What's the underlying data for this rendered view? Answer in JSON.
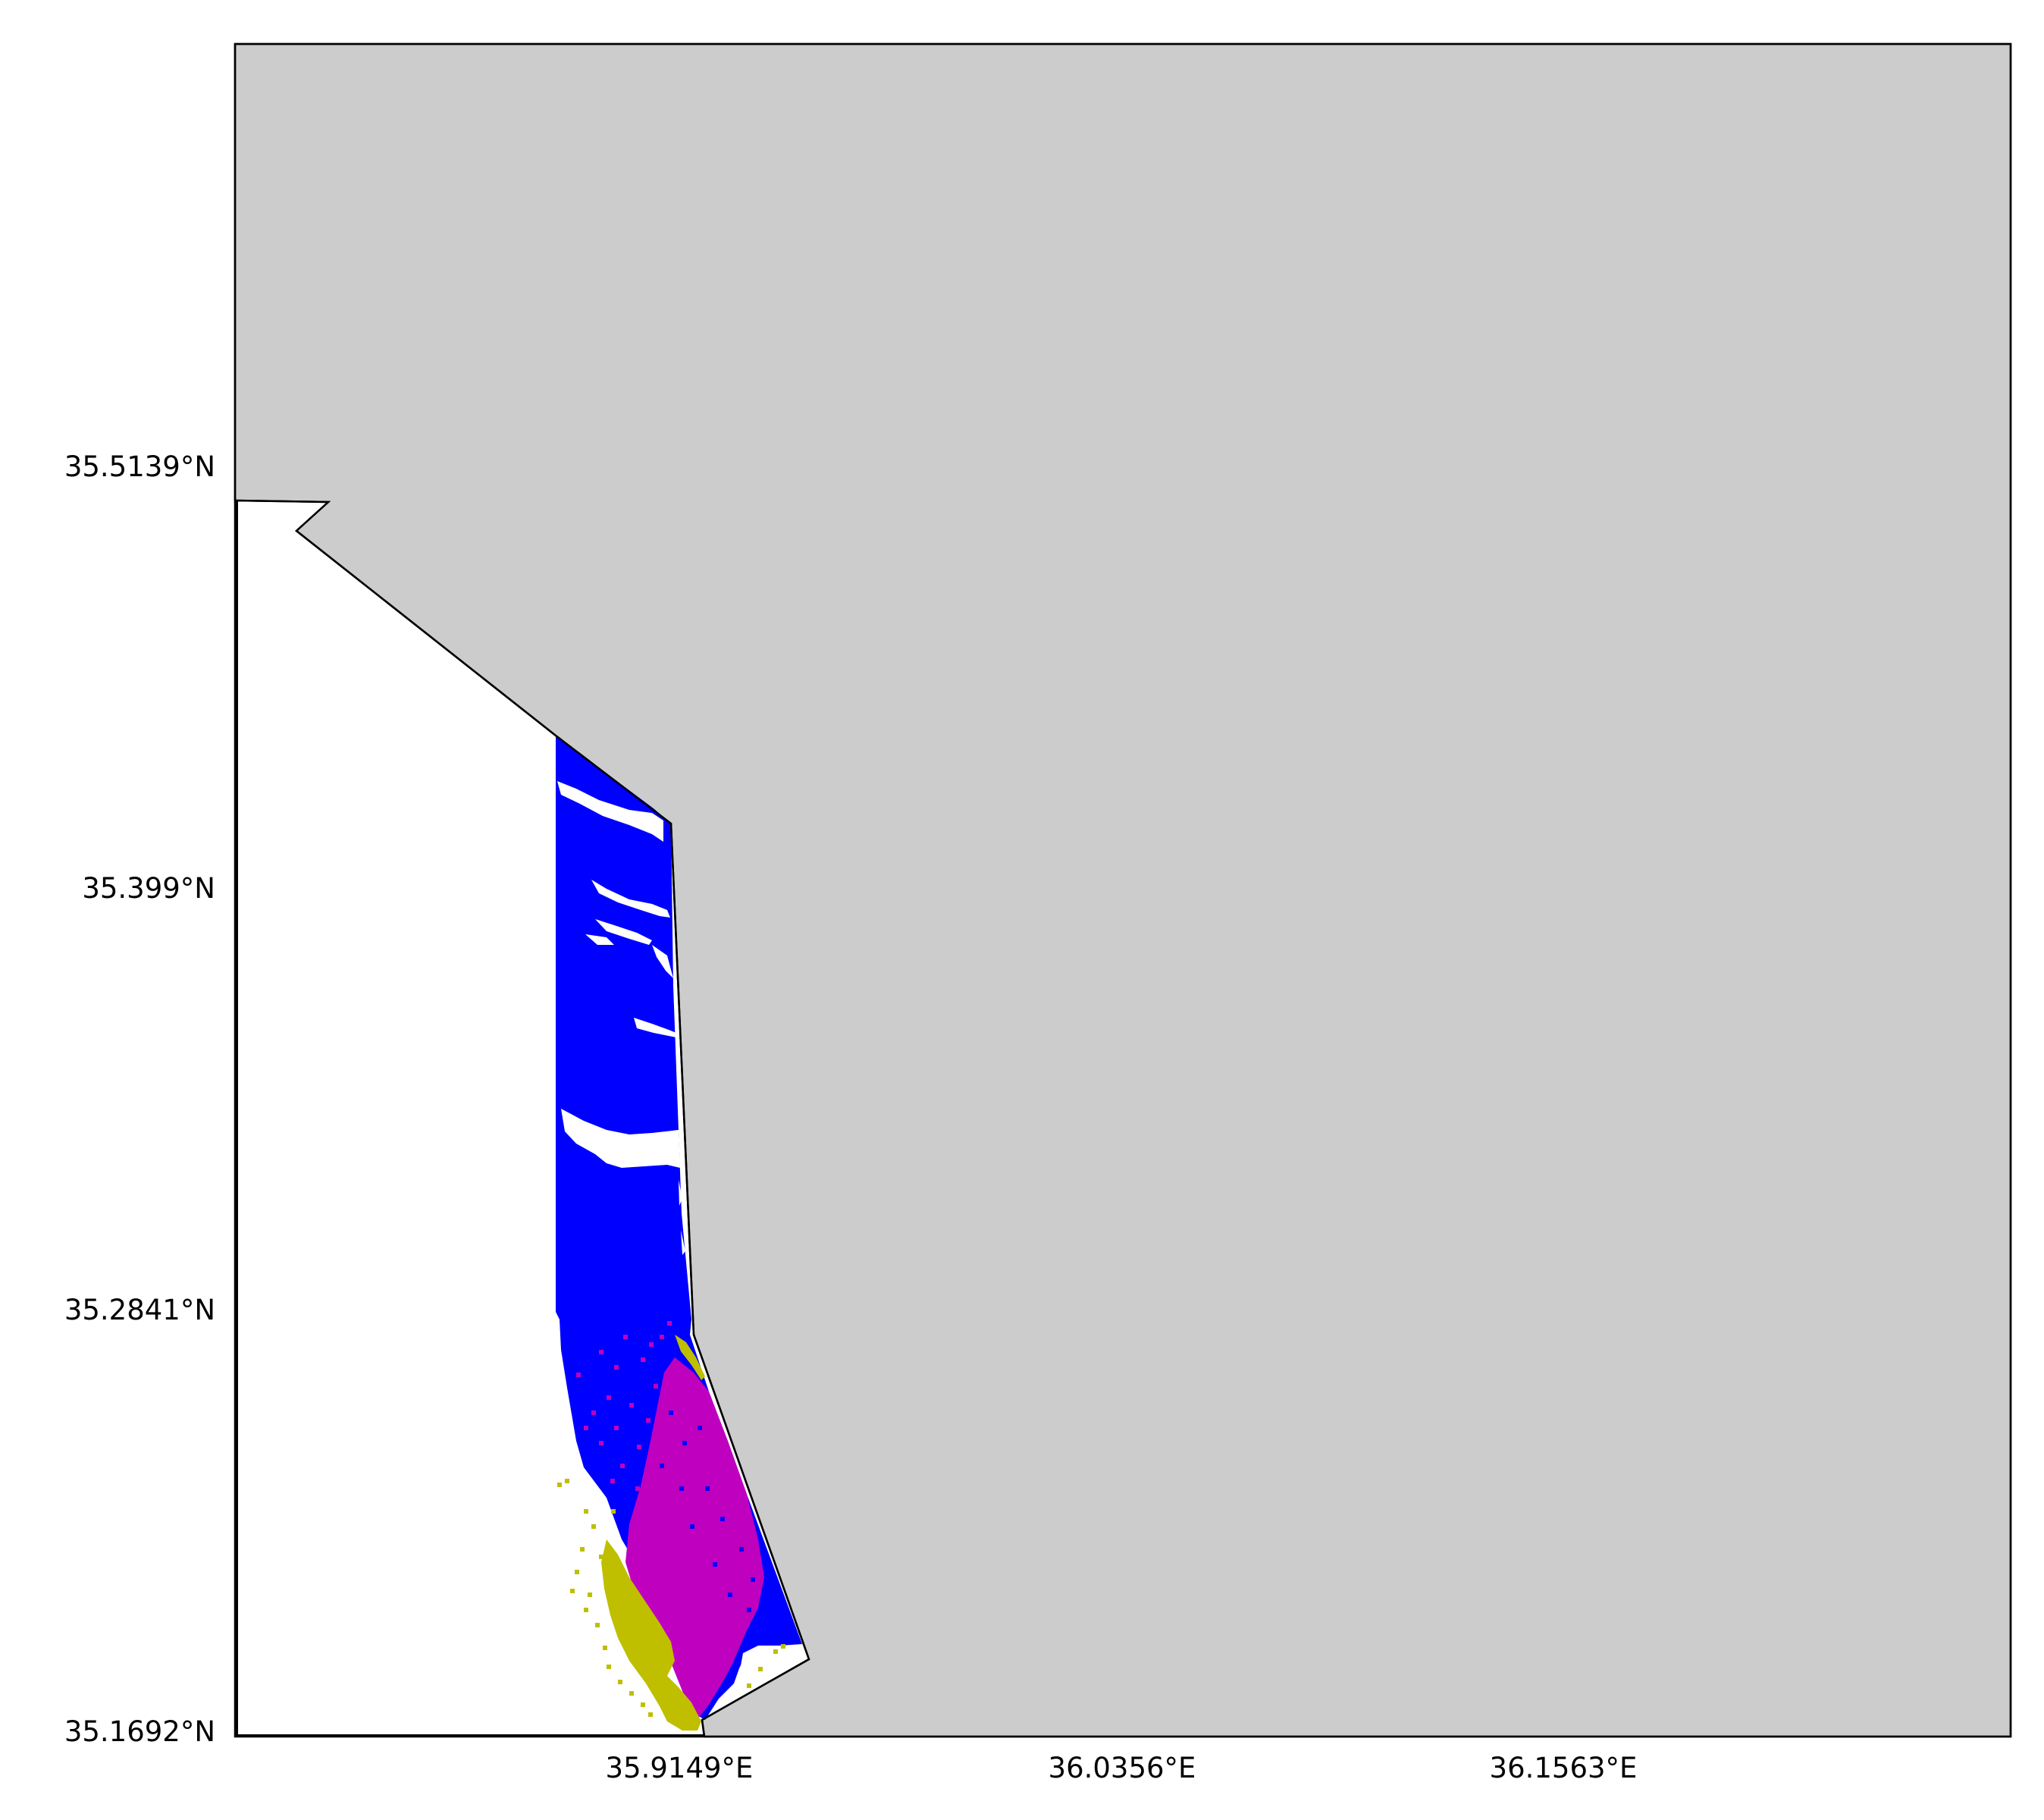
{
  "map": {
    "type": "raster-map",
    "x_axis": {
      "ticks": [
        "35.9149°E",
        "36.0356°E",
        "36.1563°E"
      ]
    },
    "y_axis": {
      "ticks": [
        "35.5139°N",
        "35.399°N",
        "35.2841°N",
        "35.1692°N"
      ]
    },
    "colors": {
      "land": "#cccccc",
      "water": "#ffffff",
      "outline": "#000000",
      "class_blue": "#0000ff",
      "class_magenta": "#bf00bf",
      "class_olive": "#bfbf00"
    },
    "legend": "none",
    "grid": false
  }
}
